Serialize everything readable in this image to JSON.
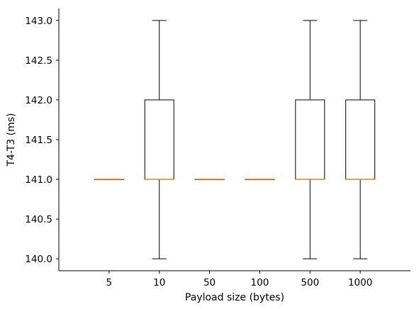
{
  "chart_data": {
    "type": "box",
    "categories": [
      "5",
      "10",
      "50",
      "100",
      "500",
      "1000"
    ],
    "boxes": [
      {
        "category": "5",
        "whisker_low": 141.0,
        "q1": 141.0,
        "median": 141.0,
        "q3": 141.0,
        "whisker_high": 141.0
      },
      {
        "category": "10",
        "whisker_low": 140.0,
        "q1": 141.0,
        "median": 141.0,
        "q3": 142.0,
        "whisker_high": 143.0
      },
      {
        "category": "50",
        "whisker_low": 141.0,
        "q1": 141.0,
        "median": 141.0,
        "q3": 141.0,
        "whisker_high": 141.0
      },
      {
        "category": "100",
        "whisker_low": 141.0,
        "q1": 141.0,
        "median": 141.0,
        "q3": 141.0,
        "whisker_high": 141.0
      },
      {
        "category": "500",
        "whisker_low": 140.0,
        "q1": 141.0,
        "median": 141.0,
        "q3": 142.0,
        "whisker_high": 143.0
      },
      {
        "category": "1000",
        "whisker_low": 140.0,
        "q1": 141.0,
        "median": 141.0,
        "q3": 142.0,
        "whisker_high": 143.0
      }
    ],
    "xlabel": "Payload size (bytes)",
    "ylabel": "T4-T3 (ms)",
    "yticks": [
      "140.0",
      "140.5",
      "141.0",
      "141.5",
      "142.0",
      "142.5",
      "143.0"
    ],
    "ylim": [
      139.85,
      143.15
    ],
    "grid": false,
    "colors": {
      "box": "#000000",
      "median": "#ff7f0e",
      "axis": "#000000"
    }
  }
}
